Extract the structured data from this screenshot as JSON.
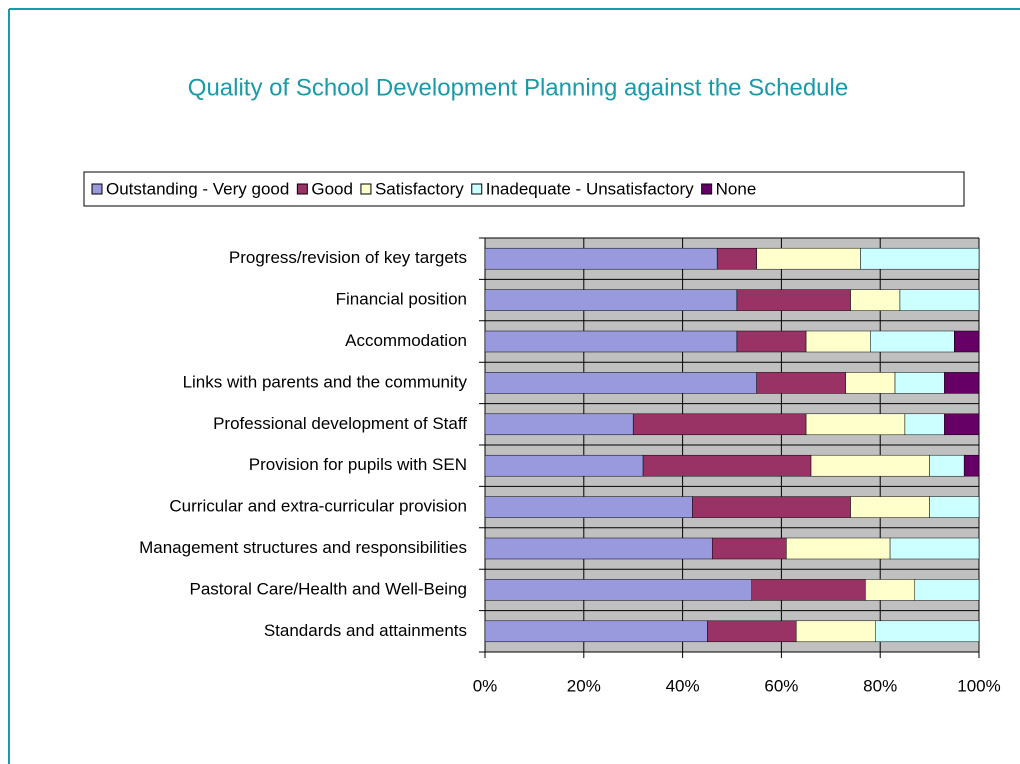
{
  "chart_data": {
    "type": "stacked_barh",
    "title": "Quality of School Development Planning against the Schedule",
    "categories": [
      "Progress/revision of key targets",
      "Financial position",
      "Accommodation",
      "Links with parents and the community",
      "Professional development of Staff",
      "Provision for pupils with SEN",
      "Curricular and extra-curricular provision",
      "Management structures and responsibilities",
      "Pastoral Care/Health and Well-Being",
      "Standards and attainments"
    ],
    "series": [
      {
        "name": "Outstanding - Very good",
        "color": "#9999dd",
        "values": [
          47,
          51,
          51,
          55,
          30,
          32,
          42,
          46,
          54,
          45
        ]
      },
      {
        "name": "Good",
        "color": "#993366",
        "values": [
          8,
          23,
          14,
          18,
          35,
          34,
          32,
          15,
          23,
          18
        ]
      },
      {
        "name": "Satisfactory",
        "color": "#ffffcc",
        "values": [
          21,
          10,
          13,
          10,
          20,
          24,
          16,
          21,
          10,
          16
        ]
      },
      {
        "name": "Inadequate - Unsatisfactory",
        "color": "#ccffff",
        "values": [
          24,
          16,
          17,
          10,
          8,
          7,
          10,
          18,
          13,
          21
        ]
      },
      {
        "name": "None",
        "color": "#660066",
        "values": [
          0,
          0,
          5,
          7,
          7,
          3,
          0,
          0,
          0,
          0
        ]
      }
    ],
    "xlim": [
      0,
      100
    ],
    "xticks": [
      {
        "value": 0,
        "label": "0%"
      },
      {
        "value": 20,
        "label": "20%"
      },
      {
        "value": 40,
        "label": "40%"
      },
      {
        "value": 60,
        "label": "60%"
      },
      {
        "value": 80,
        "label": "80%"
      },
      {
        "value": 100,
        "label": "100%"
      }
    ],
    "grid": true,
    "legend": "top",
    "plot_background": "#c0c0c0"
  }
}
